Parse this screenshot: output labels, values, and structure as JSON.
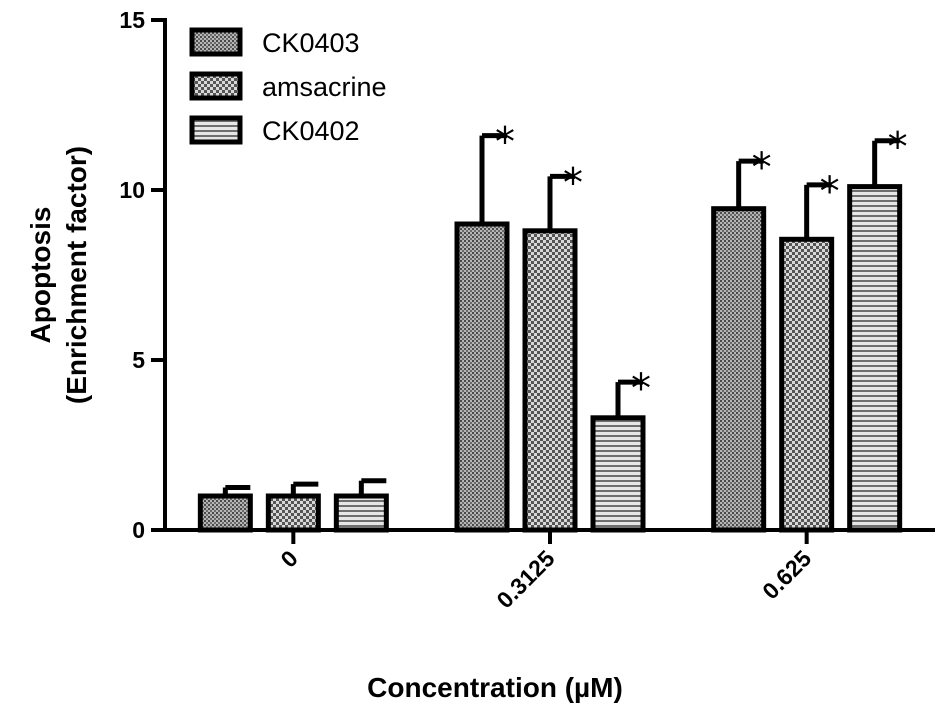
{
  "chart_data": {
    "type": "bar",
    "xlabel": "Concentration (µM)",
    "ylabel_lines": [
      "Apoptosis",
      "(Enrichment factor)"
    ],
    "categories": [
      "0",
      "0.3125",
      "0.625"
    ],
    "ylim": [
      0,
      15
    ],
    "yticks": [
      0,
      5,
      10,
      15
    ],
    "series": [
      {
        "name": "CK0403",
        "values": [
          1.0,
          9.0,
          9.45
        ],
        "errors": [
          0.25,
          2.6,
          1.4
        ],
        "significant": [
          false,
          true,
          true
        ],
        "pattern": "fine-dots"
      },
      {
        "name": "amsacrine",
        "values": [
          1.0,
          8.8,
          8.55
        ],
        "errors": [
          0.35,
          1.6,
          1.6
        ],
        "significant": [
          false,
          true,
          true
        ],
        "pattern": "checker"
      },
      {
        "name": "CK0402",
        "values": [
          1.0,
          3.3,
          10.1
        ],
        "errors": [
          0.45,
          1.05,
          1.35
        ],
        "significant": [
          false,
          true,
          true
        ],
        "pattern": "horizontal-stripes"
      }
    ],
    "significance_marker": "*",
    "legend_position": "top-left",
    "grid": false
  }
}
